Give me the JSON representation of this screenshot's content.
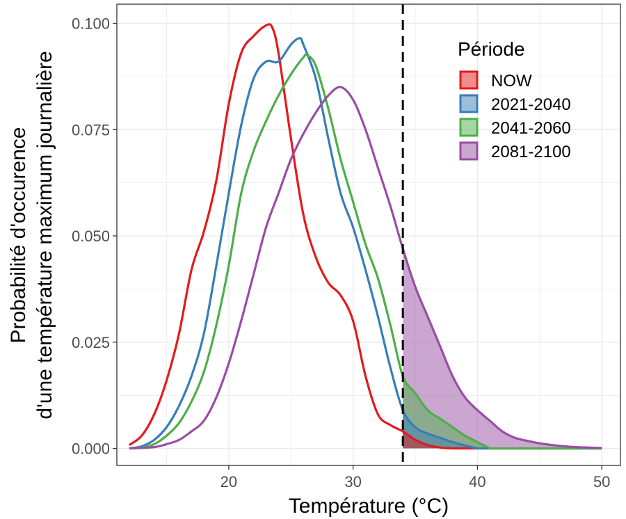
{
  "chart_data": {
    "type": "area",
    "title": "",
    "xlabel": "Température (°C)",
    "ylabel_line1": "Probabilité d'occurence",
    "ylabel_line2": "d'une température maximum journalière",
    "xlim": [
      11,
      51.5
    ],
    "ylim": [
      -0.004,
      0.1045
    ],
    "xticks": [
      20,
      30,
      40,
      50
    ],
    "yticks": [
      0.0,
      0.025,
      0.05,
      0.075,
      0.1
    ],
    "ytick_labels": [
      "0.000",
      "0.025",
      "0.050",
      "0.075",
      "0.100"
    ],
    "grid": true,
    "threshold": 34,
    "threshold_style": "dashed",
    "shade_from_threshold": true,
    "legend_title": "Période",
    "legend_position": "top-right",
    "series": [
      {
        "name": "NOW",
        "color": "#e41a1c",
        "x": [
          12,
          13,
          14,
          15,
          16,
          17,
          18,
          19,
          20,
          21,
          22,
          23,
          23.5,
          24,
          25,
          26,
          27,
          28,
          29,
          30,
          31,
          32,
          33,
          34,
          35,
          36,
          37,
          38
        ],
        "y": [
          0.0008,
          0.003,
          0.008,
          0.016,
          0.027,
          0.042,
          0.051,
          0.063,
          0.081,
          0.093,
          0.097,
          0.0995,
          0.099,
          0.093,
          0.073,
          0.055,
          0.045,
          0.039,
          0.036,
          0.03,
          0.017,
          0.008,
          0.0055,
          0.004,
          0.002,
          0.0008,
          0.0002,
          0.0
        ]
      },
      {
        "name": "2021-2040",
        "color": "#377eb8",
        "x": [
          12,
          13,
          14,
          15,
          16,
          17,
          18,
          19,
          20,
          21,
          22,
          23,
          24,
          25,
          25.7,
          26,
          27,
          28,
          29,
          30,
          31,
          32,
          33,
          34,
          35,
          36,
          37,
          38,
          39,
          40
        ],
        "y": [
          0.0,
          0.0005,
          0.002,
          0.005,
          0.01,
          0.017,
          0.027,
          0.043,
          0.06,
          0.076,
          0.087,
          0.091,
          0.091,
          0.095,
          0.0965,
          0.095,
          0.087,
          0.073,
          0.06,
          0.052,
          0.042,
          0.031,
          0.019,
          0.009,
          0.005,
          0.0035,
          0.0025,
          0.0015,
          0.0007,
          0.0
        ]
      },
      {
        "name": "2041-2060",
        "color": "#4daf4a",
        "x": [
          12,
          13,
          14,
          15,
          16,
          17,
          18,
          19,
          20,
          21,
          22,
          23,
          24,
          25,
          26,
          26.3,
          27,
          28,
          29,
          30,
          31,
          32,
          33,
          34,
          35,
          36,
          37,
          38,
          39,
          40,
          41
        ],
        "y": [
          0.0,
          0.0002,
          0.001,
          0.003,
          0.006,
          0.011,
          0.018,
          0.029,
          0.043,
          0.06,
          0.07,
          0.077,
          0.083,
          0.088,
          0.092,
          0.0925,
          0.09,
          0.08,
          0.068,
          0.058,
          0.048,
          0.04,
          0.029,
          0.017,
          0.013,
          0.009,
          0.007,
          0.005,
          0.003,
          0.0015,
          0.0
        ]
      },
      {
        "name": "2081-2100",
        "color": "#984ea3",
        "x": [
          12,
          14,
          15,
          16,
          17,
          18,
          19,
          20,
          21,
          22,
          23,
          24,
          25,
          26,
          27,
          28,
          29,
          30,
          31,
          32,
          33,
          34,
          35,
          36,
          37,
          38,
          39,
          40,
          41,
          42,
          43,
          44,
          45,
          46,
          47,
          48,
          49,
          50
        ],
        "y": [
          0.0,
          0.0003,
          0.001,
          0.002,
          0.004,
          0.0065,
          0.012,
          0.02,
          0.03,
          0.041,
          0.052,
          0.06,
          0.068,
          0.074,
          0.079,
          0.083,
          0.085,
          0.082,
          0.075,
          0.066,
          0.057,
          0.047,
          0.038,
          0.031,
          0.024,
          0.017,
          0.012,
          0.009,
          0.0065,
          0.004,
          0.0025,
          0.0018,
          0.0012,
          0.0008,
          0.0005,
          0.0003,
          0.0002,
          0.0001
        ]
      }
    ]
  }
}
